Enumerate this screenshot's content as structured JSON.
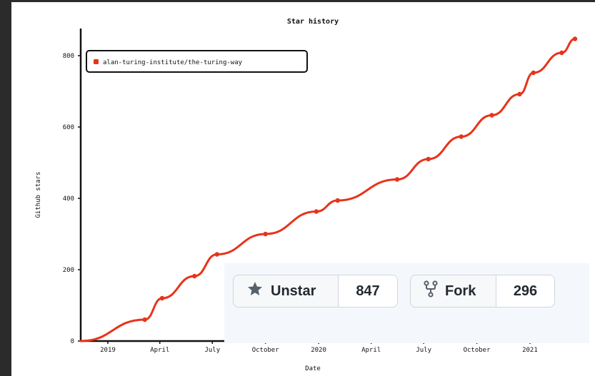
{
  "chart_data": {
    "type": "line",
    "title": "Star history",
    "xlabel": "Date",
    "ylabel": "Github stars",
    "ylim": [
      0,
      850
    ],
    "yticks": [
      0,
      200,
      400,
      600,
      800
    ],
    "xticks": [
      {
        "label": "2019",
        "date": "2019-01-01"
      },
      {
        "label": "April",
        "date": "2019-04-01"
      },
      {
        "label": "July",
        "date": "2019-07-01"
      },
      {
        "label": "October",
        "date": "2019-10-01"
      },
      {
        "label": "2020",
        "date": "2020-01-01"
      },
      {
        "label": "April",
        "date": "2020-04-01"
      },
      {
        "label": "July",
        "date": "2020-07-01"
      },
      {
        "label": "October",
        "date": "2020-10-01"
      },
      {
        "label": "2021",
        "date": "2021-01-01"
      }
    ],
    "xlim": [
      "2018-11-15",
      "2021-03-20"
    ],
    "legend_position": "top-left",
    "series": [
      {
        "name": "alan-turing-institute/the-turing-way",
        "color": "#e8331a",
        "points": [
          {
            "x": "2018-11-15",
            "y": 0
          },
          {
            "x": "2019-03-06",
            "y": 60
          },
          {
            "x": "2019-04-05",
            "y": 120
          },
          {
            "x": "2019-05-31",
            "y": 182
          },
          {
            "x": "2019-07-09",
            "y": 243
          },
          {
            "x": "2019-10-01",
            "y": 300
          },
          {
            "x": "2019-12-28",
            "y": 363
          },
          {
            "x": "2020-02-03",
            "y": 394
          },
          {
            "x": "2020-05-16",
            "y": 453
          },
          {
            "x": "2020-07-09",
            "y": 510
          },
          {
            "x": "2020-09-04",
            "y": 573
          },
          {
            "x": "2020-10-27",
            "y": 633
          },
          {
            "x": "2020-12-14",
            "y": 692
          },
          {
            "x": "2021-01-07",
            "y": 752
          },
          {
            "x": "2021-02-25",
            "y": 808
          },
          {
            "x": "2021-03-20",
            "y": 847
          }
        ]
      }
    ]
  },
  "badges": {
    "star": {
      "label": "Unstar",
      "count": "847",
      "icon": "star-icon"
    },
    "fork": {
      "label": "Fork",
      "count": "296",
      "icon": "fork-icon"
    }
  }
}
